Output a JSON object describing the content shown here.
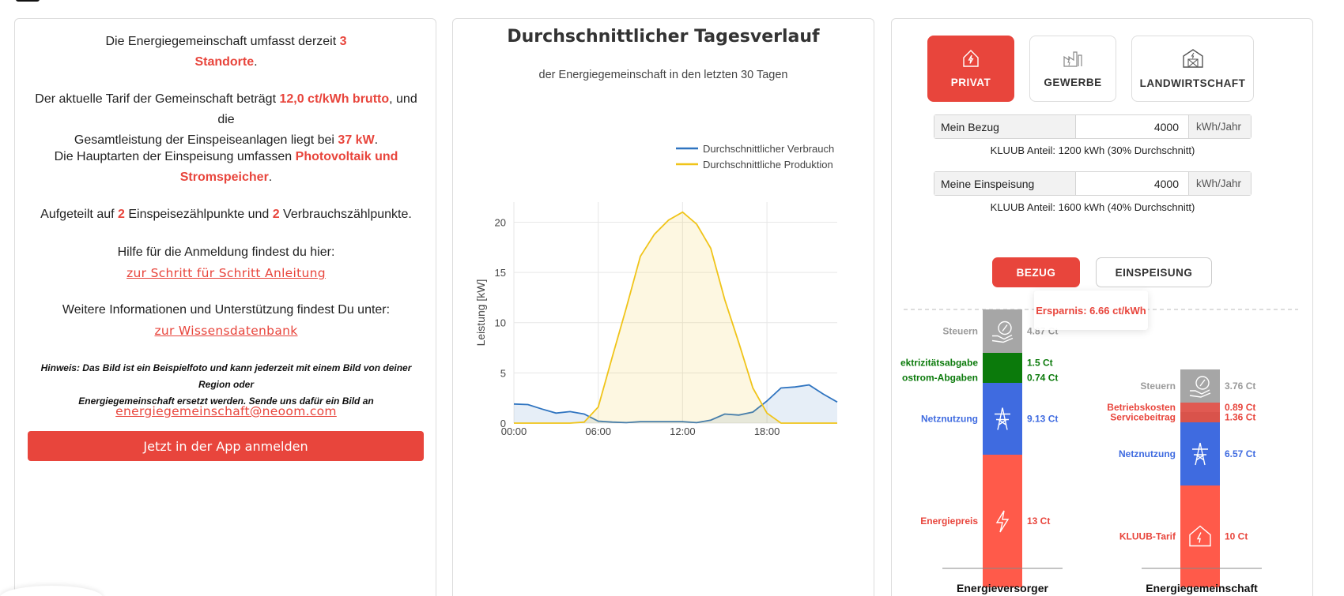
{
  "info": {
    "p1": [
      "Die Energiegemeinschaft umfasst derzeit ",
      "3",
      "Standorte",
      "."
    ],
    "p2": [
      "Der aktuelle Tarif der Gemeinschaft beträgt ",
      "12,0 ct/kWh brutto",
      ", und die",
      "Gesamtleistung der Einspeiseanlagen liegt bei ",
      "37 kW",
      "."
    ],
    "p3": [
      "Die Hauptarten der Einspeisung umfassen ",
      "Photovoltaik und",
      "Stromspeicher",
      "."
    ],
    "p4": [
      "Aufgeteilt auf ",
      "2",
      " Einspeisezählpunkte und ",
      "2",
      " Verbrauchszählpunkte."
    ],
    "help_text": "Hilfe für die Anmeldung findest du hier:",
    "help_link": "zur Schritt für Schritt Anleitung",
    "more_text": "Weitere Informationen und Unterstützung findest Du unter:",
    "more_link": "zur Wissensdatenbank",
    "note_line1": "Hinweis: Das Bild ist ein Beispielfoto und kann jederzeit mit einem Bild von deiner Region oder",
    "note_line2": "Energiegemeinschaft ersetzt werden. Sende uns dafür ein Bild an",
    "email": "energiegemeinschaft@neoom.com",
    "app_button": "Jetzt in der App anmelden"
  },
  "chart": {
    "title": "Durchschnittlicher Tagesverlauf",
    "subtitle": "der Energiegemeinschaft in den letzten 30 Tagen"
  },
  "chart_data": {
    "type": "line",
    "ylabel": "Leistung [kW]",
    "xlabel": "",
    "x": [
      "00:00",
      "01:00",
      "02:00",
      "03:00",
      "04:00",
      "05:00",
      "06:00",
      "07:00",
      "08:00",
      "09:00",
      "10:00",
      "11:00",
      "12:00",
      "13:00",
      "14:00",
      "15:00",
      "16:00",
      "17:00",
      "18:00",
      "19:00",
      "20:00",
      "21:00",
      "22:00",
      "23:00"
    ],
    "xticks": [
      "00:00",
      "06:00",
      "12:00",
      "18:00"
    ],
    "yticks": [
      0,
      5,
      10,
      15,
      20
    ],
    "ylim": [
      0,
      22
    ],
    "series": [
      {
        "name": "Durchschnittlicher Verbrauch",
        "color": "#2f74c0",
        "fill": "rgba(47,116,192,0.12)",
        "values": [
          1.9,
          1.85,
          1.4,
          1.0,
          1.15,
          0.9,
          0.2,
          0.1,
          0.05,
          0.15,
          0.15,
          0.15,
          0.15,
          0.05,
          0.3,
          0.9,
          0.8,
          1.1,
          2.2,
          3.5,
          3.6,
          3.8,
          2.9,
          2.1
        ]
      },
      {
        "name": "Durchschnittliche Produktion",
        "color": "#f0c419",
        "fill": "rgba(240,196,25,0.13)",
        "values": [
          0,
          0,
          0,
          0,
          0,
          0.1,
          1.6,
          6.6,
          11.5,
          16.6,
          18.8,
          20.2,
          21.0,
          19.8,
          17.4,
          12.3,
          8.0,
          3.5,
          1.0,
          0,
          0,
          0,
          0,
          0
        ]
      }
    ],
    "legend_position": "top-right",
    "grid": true
  },
  "categories": {
    "items": [
      {
        "label": "PRIVAT",
        "icon": "house-icon",
        "active": true
      },
      {
        "label": "GEWERBE",
        "icon": "factory-icon",
        "active": false
      },
      {
        "label": "LANDWIRTSCHAFT",
        "icon": "barn-icon",
        "active": false
      }
    ]
  },
  "inputs": {
    "bezug": {
      "label": "Mein Bezug",
      "value": "4000",
      "unit": "kWh/Jahr",
      "share": "KLUUB Anteil: 1200 kWh (30% Durchschnitt)"
    },
    "einspeisung": {
      "label": "Meine Einspeisung",
      "value": "4000",
      "unit": "kWh/Jahr",
      "share": "KLUUB Anteil: 1600 kWh (40% Durchschnitt)"
    }
  },
  "toggle": {
    "bezug": "BEZUG",
    "einspeisung": "EINSPEISUNG",
    "active": "bezug"
  },
  "compare": {
    "tooltip": "Ersparnis: 6.66 ct/kWh",
    "left_label": "Energieversorger",
    "right_label": "Energiegemeinschaft",
    "left_segments": [
      {
        "name": "Steuern",
        "value": "4.87 Ct",
        "color": "#a6a6a6",
        "label_color": "#9a9a9a",
        "icon": "money-hand-icon"
      },
      {
        "name": "Elektrizitätsabgabe",
        "value": "1.5 Ct",
        "color": "#0b7a0b",
        "label_color": "#0b7a0b"
      },
      {
        "name": "Ökostrom-Abgaben",
        "value": "0.74 Ct",
        "color": "#0b7a0b",
        "label_color": "#0b7a0b"
      },
      {
        "name": "Netznutzung",
        "value": "9.13 Ct",
        "color": "#3f6be0",
        "label_color": "#3f6be0",
        "icon": "power-tower-icon"
      },
      {
        "name": "Energiepreis",
        "value": "13 Ct",
        "color": "#ff5a4a",
        "label_color": "#e8453c",
        "icon": "lightning-icon"
      }
    ],
    "left_partial_labels": [
      "ektrizitätsabgabe",
      "ostrom-Abgaben"
    ],
    "right_segments": [
      {
        "name": "Steuern",
        "value": "3.76 Ct",
        "color": "#a6a6a6",
        "label_color": "#9a9a9a",
        "icon": "money-hand-icon"
      },
      {
        "name": "Betriebskosten",
        "value": "0.89 Ct",
        "color": "#e05a52",
        "label_color": "#e8453c"
      },
      {
        "name": "Servicebeitrag",
        "value": "1.36 Ct",
        "color": "#d9534b",
        "label_color": "#e8453c"
      },
      {
        "name": "Netznutzung",
        "value": "6.57 Ct",
        "color": "#3f6be0",
        "label_color": "#3f6be0",
        "icon": "power-tower-icon"
      },
      {
        "name": "KLUUB-Tarif",
        "value": "10 Ct",
        "color": "#ff5a4a",
        "label_color": "#e8453c",
        "icon": "house-icon"
      }
    ]
  }
}
